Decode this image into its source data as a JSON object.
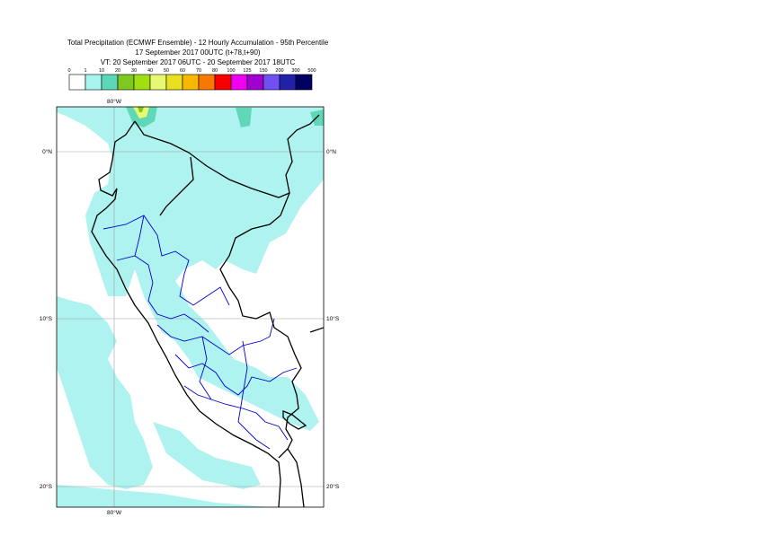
{
  "title": {
    "line1": "Total Precipitation (ECMWF Ensemble) - 12 Hourly Accumulation - 95th Percentile",
    "line2": "17 September 2017 00UTC (t+78,t+90)",
    "line3": "VT: 20 September 2017 06UTC - 20 September 2017 18UTC"
  },
  "legend": {
    "ticks": [
      "0",
      "1",
      "10",
      "20",
      "30",
      "40",
      "50",
      "60",
      "70",
      "80",
      "100",
      "125",
      "150",
      "200",
      "300",
      "500"
    ],
    "colors": [
      "#ffffff",
      "#a8f5f0",
      "#5ad8b8",
      "#7fc820",
      "#a0e010",
      "#e8f870",
      "#e8e020",
      "#f8b800",
      "#f87800",
      "#f80000",
      "#f000f0",
      "#a000d0",
      "#7050f0",
      "#2020a8",
      "#000060"
    ]
  },
  "map": {
    "lon_labels_top": [
      "80°W"
    ],
    "lon_labels_bottom": [
      "80°W"
    ],
    "lat_labels_left": [
      "0°N",
      "10°S",
      "20°S"
    ],
    "lat_labels_right": [
      "0°N",
      "10°S",
      "20°S"
    ],
    "colors": {
      "light_precip": "#aef3f0",
      "medium_precip": "#60d8b8",
      "coast": "#000000",
      "regions": "#0000c8",
      "grid": "#a0a0a0"
    }
  }
}
